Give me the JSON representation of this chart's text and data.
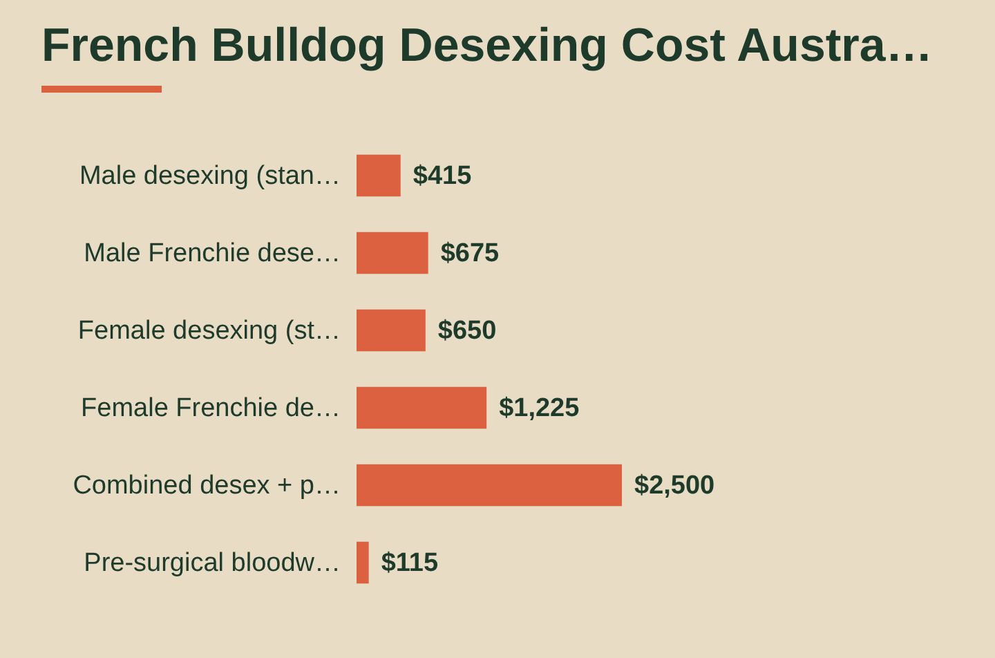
{
  "chart_data": {
    "type": "bar",
    "orientation": "horizontal",
    "title": "French Bulldog Desexing Cost Austra…",
    "categories": [
      "Male desexing (stan…",
      "Male Frenchie dese…",
      "Female desexing (st…",
      "Female Frenchie de…",
      "Combined desex + p…",
      "Pre-surgical bloodw…"
    ],
    "values": [
      415,
      675,
      650,
      1225,
      2500,
      115
    ],
    "value_labels": [
      "$415",
      "$675",
      "$650",
      "$1,225",
      "$2,500",
      "$115"
    ],
    "color": "#dc6140"
  }
}
